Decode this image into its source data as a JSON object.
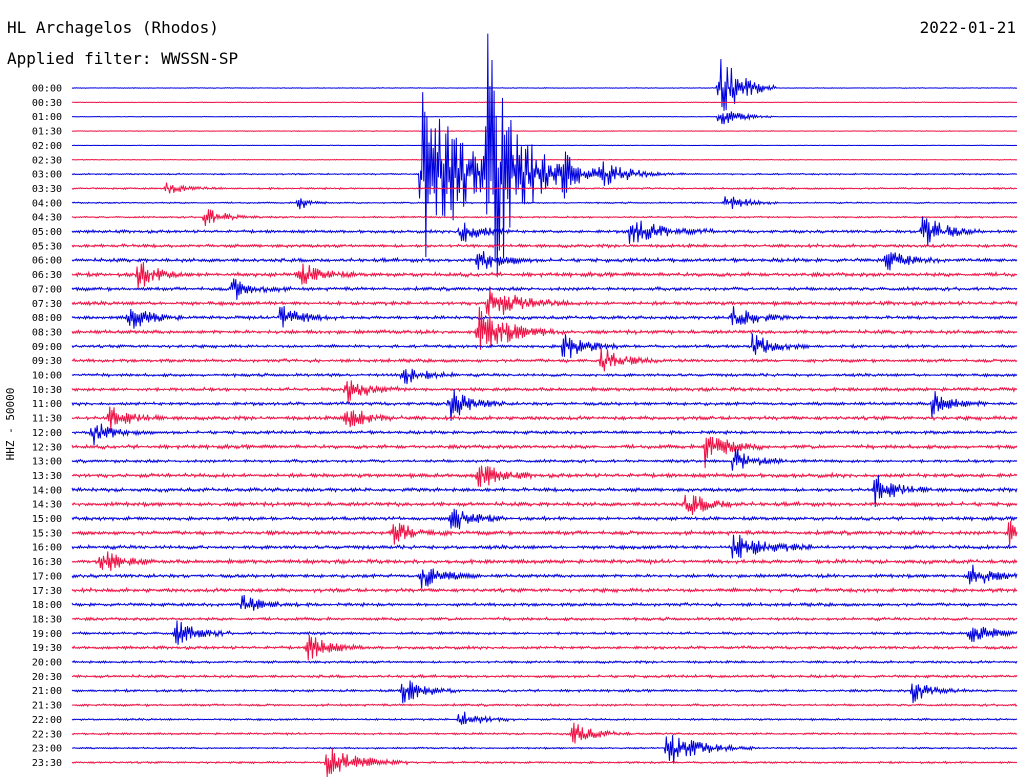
{
  "header": {
    "station": "HL Archagelos (Rhodos)",
    "date": "2022-01-21",
    "filter": "Applied filter: WWSSN-SP"
  },
  "chart_data": {
    "type": "line",
    "title": "HL Archagelos (Rhodos)",
    "ylabel": "HHZ - 50000",
    "date": "2022-01-21",
    "row_labels": [
      "00:00",
      "00:30",
      "01:00",
      "01:30",
      "02:00",
      "02:30",
      "03:00",
      "03:30",
      "04:00",
      "04:30",
      "05:00",
      "05:30",
      "06:00",
      "06:30",
      "07:00",
      "07:30",
      "08:00",
      "08:30",
      "09:00",
      "09:30",
      "10:00",
      "10:30",
      "11:00",
      "11:30",
      "12:00",
      "12:30",
      "13:00",
      "13:30",
      "14:00",
      "14:30",
      "15:00",
      "15:30",
      "16:00",
      "16:30",
      "17:00",
      "17:30",
      "18:00",
      "18:30",
      "19:00",
      "19:30",
      "20:00",
      "20:30",
      "21:00",
      "21:30",
      "22:00",
      "22:30",
      "23:00",
      "23:30"
    ],
    "colors": {
      "even_rows": "#0000dd",
      "odd_rows": "#ee1144"
    },
    "noise_level": [
      0.3,
      0.25,
      0.25,
      0.3,
      0.2,
      0.3,
      0.6,
      0.7,
      0.6,
      0.7,
      1.2,
      1.3,
      1.5,
      1.6,
      1.4,
      1.5,
      1.3,
      1.5,
      1.2,
      1.3,
      1.2,
      1.4,
      1.3,
      1.5,
      1.3,
      1.5,
      1.2,
      1.6,
      1.5,
      1.6,
      1.4,
      1.6,
      1.5,
      1.6,
      1.4,
      1.5,
      1.3,
      1.2,
      1.1,
      1.2,
      1.0,
      1.1,
      1.0,
      0.9,
      0.8,
      0.8,
      0.7,
      0.8
    ],
    "events": [
      {
        "row": 0,
        "t": 0.685,
        "amp": 40,
        "dur": 0.02
      },
      {
        "row": 2,
        "t": 0.685,
        "amp": 10,
        "dur": 0.02
      },
      {
        "row": 6,
        "t": 0.37,
        "amp": 100,
        "dur": 0.03
      },
      {
        "row": 6,
        "t": 0.44,
        "amp": 140,
        "dur": 0.03
      },
      {
        "row": 6,
        "t": 0.39,
        "amp": 20,
        "dur": 0.04
      },
      {
        "row": 6,
        "t": 0.52,
        "amp": 15,
        "dur": 0.03
      },
      {
        "row": 6,
        "t": 0.56,
        "amp": 10,
        "dur": 0.03
      },
      {
        "row": 7,
        "t": 0.1,
        "amp": 6,
        "dur": 0.02
      },
      {
        "row": 8,
        "t": 0.24,
        "amp": 8,
        "dur": 0.01
      },
      {
        "row": 8,
        "t": 0.69,
        "amp": 10,
        "dur": 0.02
      },
      {
        "row": 9,
        "t": 0.14,
        "amp": 10,
        "dur": 0.02
      },
      {
        "row": 10,
        "t": 0.41,
        "amp": 14,
        "dur": 0.02
      },
      {
        "row": 10,
        "t": 0.59,
        "amp": 15,
        "dur": 0.03
      },
      {
        "row": 10,
        "t": 0.9,
        "amp": 20,
        "dur": 0.02
      },
      {
        "row": 12,
        "t": 0.43,
        "amp": 14,
        "dur": 0.02
      },
      {
        "row": 12,
        "t": 0.86,
        "amp": 12,
        "dur": 0.02
      },
      {
        "row": 13,
        "t": 0.07,
        "amp": 14,
        "dur": 0.02
      },
      {
        "row": 13,
        "t": 0.24,
        "amp": 14,
        "dur": 0.02
      },
      {
        "row": 14,
        "t": 0.17,
        "amp": 12,
        "dur": 0.02
      },
      {
        "row": 15,
        "t": 0.44,
        "amp": 18,
        "dur": 0.03
      },
      {
        "row": 16,
        "t": 0.06,
        "amp": 14,
        "dur": 0.02
      },
      {
        "row": 16,
        "t": 0.22,
        "amp": 14,
        "dur": 0.02
      },
      {
        "row": 16,
        "t": 0.7,
        "amp": 14,
        "dur": 0.02
      },
      {
        "row": 17,
        "t": 0.43,
        "amp": 25,
        "dur": 0.03
      },
      {
        "row": 18,
        "t": 0.52,
        "amp": 16,
        "dur": 0.02
      },
      {
        "row": 18,
        "t": 0.72,
        "amp": 14,
        "dur": 0.02
      },
      {
        "row": 19,
        "t": 0.56,
        "amp": 14,
        "dur": 0.02
      },
      {
        "row": 20,
        "t": 0.35,
        "amp": 12,
        "dur": 0.02
      },
      {
        "row": 21,
        "t": 0.29,
        "amp": 14,
        "dur": 0.02
      },
      {
        "row": 22,
        "t": 0.4,
        "amp": 18,
        "dur": 0.02
      },
      {
        "row": 22,
        "t": 0.91,
        "amp": 14,
        "dur": 0.02
      },
      {
        "row": 23,
        "t": 0.04,
        "amp": 12,
        "dur": 0.02
      },
      {
        "row": 23,
        "t": 0.29,
        "amp": 14,
        "dur": 0.02
      },
      {
        "row": 24,
        "t": 0.02,
        "amp": 14,
        "dur": 0.02
      },
      {
        "row": 25,
        "t": 0.67,
        "amp": 20,
        "dur": 0.02
      },
      {
        "row": 26,
        "t": 0.7,
        "amp": 14,
        "dur": 0.02
      },
      {
        "row": 27,
        "t": 0.43,
        "amp": 14,
        "dur": 0.02
      },
      {
        "row": 28,
        "t": 0.85,
        "amp": 16,
        "dur": 0.02
      },
      {
        "row": 29,
        "t": 0.65,
        "amp": 14,
        "dur": 0.02
      },
      {
        "row": 30,
        "t": 0.4,
        "amp": 16,
        "dur": 0.02
      },
      {
        "row": 31,
        "t": 0.34,
        "amp": 14,
        "dur": 0.02
      },
      {
        "row": 31,
        "t": 0.99,
        "amp": 14,
        "dur": 0.02
      },
      {
        "row": 32,
        "t": 0.7,
        "amp": 16,
        "dur": 0.03
      },
      {
        "row": 33,
        "t": 0.03,
        "amp": 14,
        "dur": 0.02
      },
      {
        "row": 34,
        "t": 0.37,
        "amp": 14,
        "dur": 0.02
      },
      {
        "row": 34,
        "t": 0.95,
        "amp": 14,
        "dur": 0.02
      },
      {
        "row": 36,
        "t": 0.18,
        "amp": 10,
        "dur": 0.02
      },
      {
        "row": 38,
        "t": 0.11,
        "amp": 14,
        "dur": 0.02
      },
      {
        "row": 38,
        "t": 0.95,
        "amp": 12,
        "dur": 0.02
      },
      {
        "row": 39,
        "t": 0.25,
        "amp": 14,
        "dur": 0.02
      },
      {
        "row": 42,
        "t": 0.35,
        "amp": 14,
        "dur": 0.02
      },
      {
        "row": 42,
        "t": 0.89,
        "amp": 12,
        "dur": 0.02
      },
      {
        "row": 44,
        "t": 0.41,
        "amp": 10,
        "dur": 0.02
      },
      {
        "row": 45,
        "t": 0.53,
        "amp": 12,
        "dur": 0.02
      },
      {
        "row": 46,
        "t": 0.63,
        "amp": 18,
        "dur": 0.03
      },
      {
        "row": 47,
        "t": 0.27,
        "amp": 18,
        "dur": 0.03
      }
    ]
  }
}
